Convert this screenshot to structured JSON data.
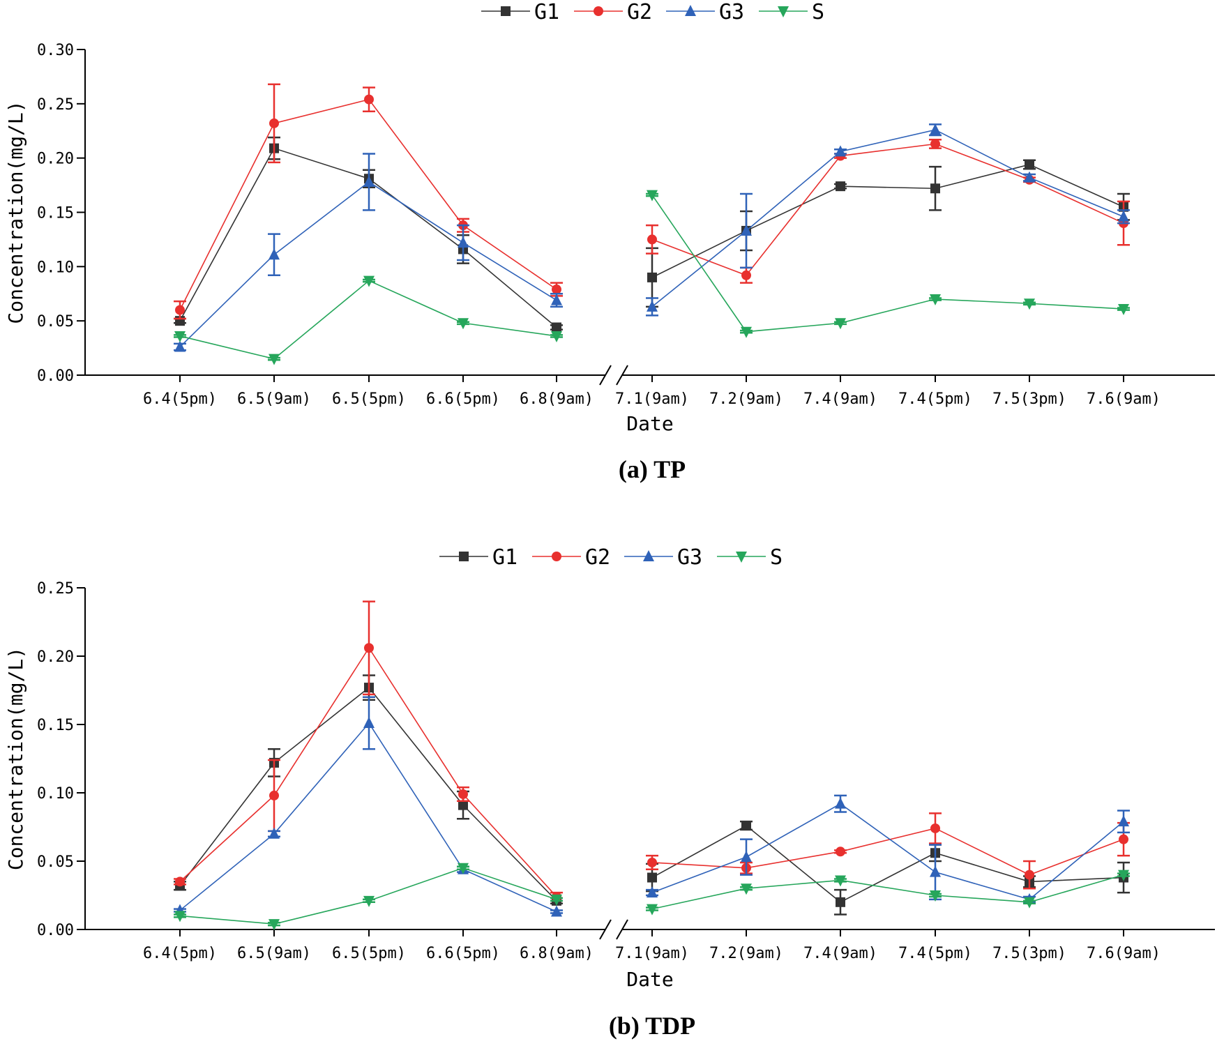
{
  "colors": {
    "G1": "#333333",
    "G2": "#e8302e",
    "G3": "#2f62b8",
    "S": "#26a65b"
  },
  "chart_data": [
    {
      "type": "line",
      "caption": "(a)  TP",
      "xlabel": "Date",
      "ylabel": "Concentration(mg/L)",
      "ylim": [
        0,
        0.3
      ],
      "yticks": [
        "0.00",
        "0.05",
        "0.10",
        "0.15",
        "0.20",
        "0.25",
        "0.30"
      ],
      "categories": [
        "6.4(5pm)",
        "6.5(9am)",
        "6.5(5pm)",
        "6.6(5pm)",
        "6.8(9am)",
        "7.1(9am)",
        "7.2(9am)",
        "7.4(9am)",
        "7.4(5pm)",
        "7.5(3pm)",
        "7.6(9am)"
      ],
      "axis_break_after_index": 4,
      "series": [
        {
          "name": "G1",
          "marker": "square",
          "values": [
            0.05,
            0.209,
            0.181,
            0.116,
            0.044,
            0.09,
            0.133,
            0.174,
            0.172,
            0.194,
            0.155
          ],
          "errors": [
            0.002,
            0.01,
            0.008,
            0.013,
            0.002,
            0.027,
            0.018,
            0.002,
            0.02,
            0.004,
            0.012
          ]
        },
        {
          "name": "G2",
          "marker": "circle",
          "values": [
            0.06,
            0.232,
            0.254,
            0.138,
            0.079,
            0.125,
            0.092,
            0.202,
            0.213,
            0.18,
            0.14
          ],
          "errors": [
            0.008,
            0.036,
            0.011,
            0.006,
            0.006,
            0.013,
            0.007,
            0.002,
            0.004,
            0.002,
            0.02
          ]
        },
        {
          "name": "G3",
          "marker": "triangle-up",
          "values": [
            0.026,
            0.111,
            0.178,
            0.122,
            0.069,
            0.063,
            0.133,
            0.206,
            0.226,
            0.182,
            0.146
          ],
          "errors": [
            0.003,
            0.019,
            0.026,
            0.016,
            0.006,
            0.008,
            0.034,
            0.002,
            0.005,
            0.003,
            0.006
          ]
        },
        {
          "name": "S",
          "marker": "triangle-down",
          "values": [
            0.036,
            0.015,
            0.087,
            0.048,
            0.036,
            0.166,
            0.04,
            0.048,
            0.07,
            0.066,
            0.061
          ],
          "errors": [
            0.001,
            0.001,
            0.001,
            0.001,
            0.001,
            0.001,
            0.001,
            0.001,
            0.001,
            0.001,
            0.001
          ]
        }
      ]
    },
    {
      "type": "line",
      "caption": "(b)  TDP",
      "xlabel": "Date",
      "ylabel": "Concentration(mg/L)",
      "ylim": [
        0,
        0.25
      ],
      "yticks": [
        "0.00",
        "0.05",
        "0.10",
        "0.15",
        "0.20",
        "0.25"
      ],
      "categories": [
        "6.4(5pm)",
        "6.5(9am)",
        "6.5(5pm)",
        "6.6(5pm)",
        "6.8(9am)",
        "7.1(9am)",
        "7.2(9am)",
        "7.4(9am)",
        "7.4(5pm)",
        "7.5(3pm)",
        "7.6(9am)"
      ],
      "axis_break_after_index": 4,
      "series": [
        {
          "name": "G1",
          "marker": "square",
          "values": [
            0.032,
            0.122,
            0.177,
            0.091,
            0.021,
            0.038,
            0.076,
            0.02,
            0.056,
            0.035,
            0.038
          ],
          "errors": [
            0.003,
            0.01,
            0.009,
            0.01,
            0.002,
            0.01,
            0.003,
            0.009,
            0.006,
            0.004,
            0.011
          ]
        },
        {
          "name": "G2",
          "marker": "circle",
          "values": [
            0.035,
            0.098,
            0.206,
            0.099,
            0.024,
            0.049,
            0.045,
            0.057,
            0.074,
            0.04,
            0.066
          ],
          "errors": [
            0.002,
            0.026,
            0.034,
            0.005,
            0.003,
            0.005,
            0.004,
            0.001,
            0.011,
            0.01,
            0.012
          ]
        },
        {
          "name": "G3",
          "marker": "triangle-up",
          "values": [
            0.014,
            0.07,
            0.151,
            0.044,
            0.013,
            0.027,
            0.053,
            0.092,
            0.042,
            0.022,
            0.079
          ],
          "errors": [
            0.001,
            0.002,
            0.019,
            0.002,
            0.001,
            0.002,
            0.013,
            0.006,
            0.02,
            0.002,
            0.008
          ]
        },
        {
          "name": "S",
          "marker": "triangle-down",
          "values": [
            0.01,
            0.004,
            0.021,
            0.045,
            0.022,
            0.015,
            0.03,
            0.036,
            0.025,
            0.02,
            0.04
          ],
          "errors": [
            0.001,
            0.001,
            0.001,
            0.001,
            0.001,
            0.001,
            0.001,
            0.001,
            0.001,
            0.001,
            0.001
          ]
        }
      ]
    }
  ]
}
